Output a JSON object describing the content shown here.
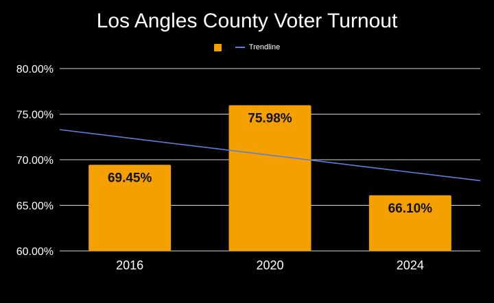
{
  "chart_data": {
    "type": "bar",
    "title": "Los Angles County Voter Turnout",
    "categories": [
      "2016",
      "2020",
      "2024"
    ],
    "series": [
      {
        "name": "",
        "values": [
          69.45,
          75.98,
          66.1
        ],
        "labels": [
          "69.45%",
          "75.98%",
          "66.10%"
        ]
      },
      {
        "name": "Trendline",
        "type": "line",
        "start": 73.3,
        "end": 67.7
      }
    ],
    "y_ticks": [
      {
        "value": 80,
        "label": "80.00%"
      },
      {
        "value": 75,
        "label": "75.00%"
      },
      {
        "value": 70,
        "label": "70.00%"
      },
      {
        "value": 65,
        "label": "65.00%"
      },
      {
        "value": 60,
        "label": "60.00%"
      }
    ],
    "ylim": [
      60,
      80
    ],
    "xlabel": "",
    "ylabel": "",
    "grid": true,
    "legend": "top-center"
  },
  "legend": {
    "bar_label": "",
    "trend_label": "Trendline"
  },
  "colors": {
    "bar": "#f4a000",
    "trend": "#5b7fde",
    "grid": "#ffffff",
    "text": "#ffffff",
    "background": "#000000"
  }
}
